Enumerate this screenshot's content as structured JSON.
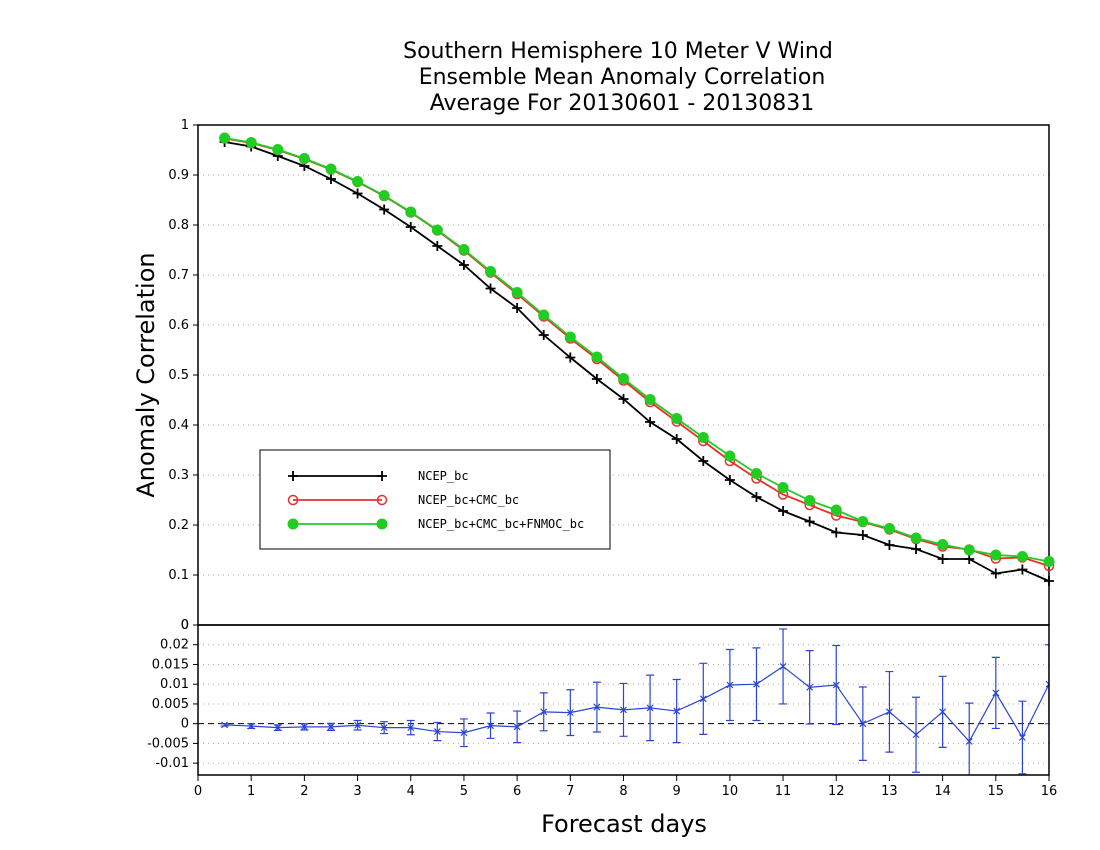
{
  "chart_data": [
    {
      "type": "line",
      "title": [
        "Southern Hemisphere 10 Meter V Wind",
        "Ensemble Mean Anomaly Correlation",
        "Average For 20130601 - 20130831"
      ],
      "xlabel": "Forecast days",
      "ylabel": "Anomaly Correlation",
      "xlim": [
        0,
        16
      ],
      "ylim": [
        0,
        1
      ],
      "xticks": [
        "0",
        "1",
        "2",
        "3",
        "4",
        "5",
        "6",
        "7",
        "8",
        "9",
        "10",
        "11",
        "12",
        "13",
        "14",
        "15",
        "16"
      ],
      "yticks": [
        "0",
        "0.1",
        "0.2",
        "0.3",
        "0.4",
        "0.5",
        "0.6",
        "0.7",
        "0.8",
        "0.9",
        "1"
      ],
      "grid": "horizontal dotted",
      "legend_position": "lower-left",
      "x": [
        0.5,
        1,
        1.5,
        2,
        2.5,
        3,
        3.5,
        4,
        4.5,
        5,
        5.5,
        6,
        6.5,
        7,
        7.5,
        8,
        8.5,
        9,
        9.5,
        10,
        10.5,
        11,
        11.5,
        12,
        12.5,
        13,
        13.5,
        14,
        14.5,
        15,
        15.5,
        16
      ],
      "series": [
        {
          "name": "NCEP_bc",
          "color": "#000000",
          "marker": "plus",
          "values": [
            0.966,
            0.957,
            0.938,
            0.918,
            0.892,
            0.863,
            0.831,
            0.796,
            0.758,
            0.72,
            0.673,
            0.634,
            0.58,
            0.535,
            0.492,
            0.452,
            0.406,
            0.372,
            0.328,
            0.29,
            0.256,
            0.228,
            0.207,
            0.185,
            0.18,
            0.16,
            0.152,
            0.132,
            0.132,
            0.103,
            0.111,
            0.088
          ]
        },
        {
          "name": "NCEP_bc+CMC_bc",
          "color": "#e8302c",
          "marker": "open-circle",
          "values": [
            0.973,
            0.964,
            0.95,
            0.932,
            0.911,
            0.886,
            0.858,
            0.825,
            0.789,
            0.749,
            0.705,
            0.662,
            0.617,
            0.573,
            0.532,
            0.489,
            0.446,
            0.407,
            0.368,
            0.328,
            0.293,
            0.261,
            0.24,
            0.219,
            0.206,
            0.191,
            0.172,
            0.157,
            0.151,
            0.133,
            0.135,
            0.118
          ]
        },
        {
          "name": "NCEP_bc+CMC_bc+FNMOC_bc",
          "color": "#22cc22",
          "marker": "filled-circle",
          "values": [
            0.974,
            0.965,
            0.951,
            0.933,
            0.912,
            0.887,
            0.859,
            0.826,
            0.79,
            0.751,
            0.707,
            0.665,
            0.62,
            0.576,
            0.536,
            0.493,
            0.451,
            0.413,
            0.375,
            0.338,
            0.303,
            0.275,
            0.249,
            0.23,
            0.207,
            0.193,
            0.174,
            0.161,
            0.15,
            0.14,
            0.137,
            0.127
          ]
        }
      ]
    },
    {
      "type": "line",
      "subtype": "difference with error bars",
      "xlim": [
        0,
        16
      ],
      "ylim": [
        -0.013,
        0.025
      ],
      "yticks": [
        "-0.01",
        "-0.005",
        "0",
        "0.005",
        "0.01",
        "0.015",
        "0.02"
      ],
      "top_label": "0",
      "color": "#2b45d6",
      "x": [
        0.5,
        1,
        1.5,
        2,
        2.5,
        3,
        3.5,
        4,
        4.5,
        5,
        5.5,
        6,
        6.5,
        7,
        7.5,
        8,
        8.5,
        9,
        9.5,
        10,
        10.5,
        11,
        11.5,
        12,
        12.5,
        13,
        13.5,
        14,
        14.5,
        15,
        15.5,
        16
      ],
      "values": [
        -0.0003,
        -0.0006,
        -0.001,
        -0.0008,
        -0.0008,
        -0.0004,
        -0.001,
        -0.001,
        -0.002,
        -0.0023,
        -0.0005,
        -0.0008,
        0.003,
        0.0028,
        0.0042,
        0.0035,
        0.004,
        0.0032,
        0.0063,
        0.0098,
        0.01,
        0.0145,
        0.0092,
        0.0098,
        0.0,
        0.003,
        -0.0028,
        0.003,
        -0.0045,
        0.0078,
        -0.0035,
        0.01
      ],
      "errors": [
        0.0003,
        0.0006,
        0.0007,
        0.0008,
        0.0009,
        0.0012,
        0.0015,
        0.0018,
        0.0023,
        0.0035,
        0.0032,
        0.004,
        0.0048,
        0.0058,
        0.0063,
        0.0067,
        0.0083,
        0.008,
        0.009,
        0.009,
        0.0092,
        0.0095,
        0.0093,
        0.01,
        0.0093,
        0.0102,
        0.0095,
        0.009,
        0.0097,
        0.009,
        0.0092,
        0.01
      ]
    }
  ]
}
